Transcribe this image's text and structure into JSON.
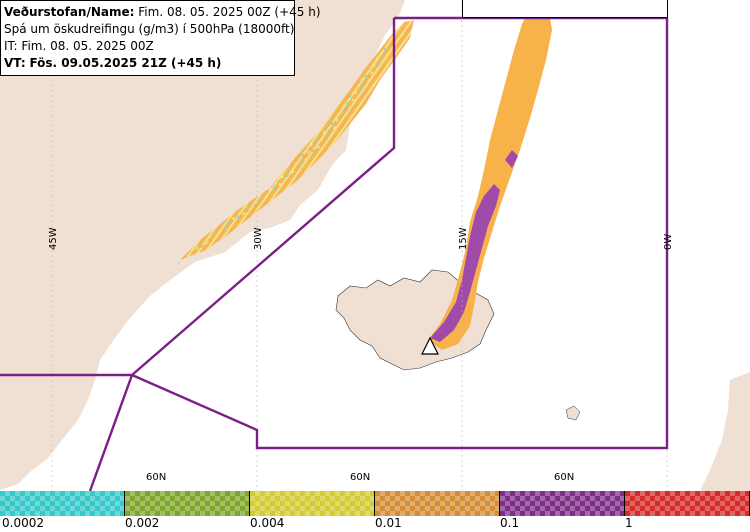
{
  "info": {
    "line1_label": "Veðurstofan/Name:",
    "line1_value": "Fim. 08. 05. 2025 00Z (+45 h)",
    "line2": "Spá um öskudreifingu (g/m3) í 500hPa (18000ft)",
    "line3": "IT: Fim. 08. 05. 2025 00Z",
    "line4_label": "VT:",
    "line4_value": "Fös. 09.05.2025 21Z (+45 h)"
  },
  "grid_labels": {
    "lon_45w": "45W",
    "lon_30w": "30W",
    "lon_15w": "15W",
    "lon_0w": "0W",
    "lat_60n_a": "60N",
    "lat_60n_b": "60N",
    "lat_60n_c": "60N"
  },
  "legend": {
    "segments": [
      {
        "color": "#36c9c9",
        "name": "0.0002-0.002"
      },
      {
        "color": "#7fa52b",
        "name": "0.002-0.004"
      },
      {
        "color": "#d2cc33",
        "name": "0.004-0.01"
      },
      {
        "color": "#d28d35",
        "name": "0.01-0.1"
      },
      {
        "color": "#7e2e86",
        "name": "0.1-1"
      },
      {
        "color": "#d42b2b",
        "name": ">1"
      }
    ],
    "tick_labels": [
      "0.0002",
      "0.002",
      "0.004",
      "0.01",
      "0.1",
      "1"
    ]
  },
  "colors": {
    "land": "#f0dfd3",
    "sea": "#ffffff",
    "boundary": "#7a1f85",
    "ash_light": "#f7b24a",
    "ash_heavy": "#a04aaa",
    "ash_edge": "#f1e488",
    "ash_trace": "#86d6d9",
    "grid": "#000000"
  }
}
